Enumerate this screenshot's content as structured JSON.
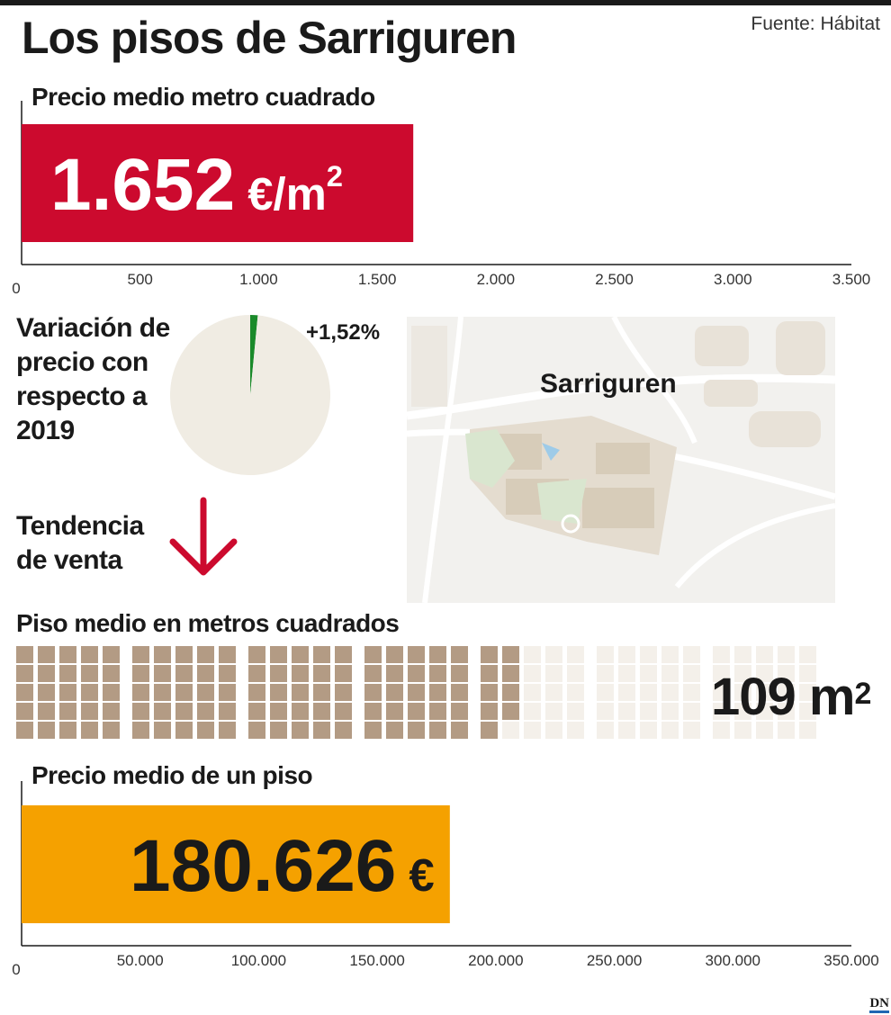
{
  "header": {
    "title": "Los pisos de Sarriguren",
    "source": "Fuente: Hábitat"
  },
  "sections": {
    "price_m2_title": "Precio medio metro cuadrado",
    "variation_title": "Variación de precio con respecto a 2019",
    "trend_title": "Tendencia de venta",
    "area_title": "Piso medio en metros cuadrados",
    "price_flat_title": "Precio medio de un piso"
  },
  "map": {
    "label": "Sarriguren"
  },
  "logo": "DN",
  "colors": {
    "red": "#cc0a2e",
    "orange": "#f5a100",
    "green": "#1a8a2a",
    "beige_pie": "#f0ece3",
    "square_filled": "#b39b84",
    "square_empty": "#f4f0ea"
  },
  "trend": {
    "direction": "down",
    "icon": "arrow-down-icon"
  },
  "area_value_text": "109 m",
  "area_value_sup": "2",
  "chart_data": [
    {
      "type": "bar",
      "orientation": "horizontal",
      "title": "Precio medio metro cuadrado",
      "values": [
        1652
      ],
      "value_label": "1.652 €/m",
      "value_label_sup": "2",
      "xlim": [
        0,
        3500
      ],
      "tick_values": [
        0,
        500,
        1000,
        1500,
        2000,
        2500,
        3000,
        3500
      ],
      "tick_labels": [
        "0",
        "500",
        "1.000",
        "1.500",
        "2.000",
        "2.500",
        "3.000",
        "3.500"
      ],
      "color": "#cc0a2e"
    },
    {
      "type": "pie",
      "title": "Variación de precio con respecto a 2019",
      "values": [
        1.52,
        98.48
      ],
      "value_label": "+1,52%",
      "colors": [
        "#1a8a2a",
        "#f0ece3"
      ]
    },
    {
      "type": "waffle",
      "title": "Piso medio en metros cuadrados",
      "value": 109,
      "total": 160,
      "unit": "m2"
    },
    {
      "type": "bar",
      "orientation": "horizontal",
      "title": "Precio medio de un piso",
      "values": [
        180626
      ],
      "value_label": "180.626 €",
      "xlim": [
        0,
        350000
      ],
      "tick_values": [
        0,
        50000,
        100000,
        150000,
        200000,
        250000,
        300000,
        350000
      ],
      "tick_labels": [
        "0",
        "50.000",
        "100.000",
        "150.000",
        "200.000",
        "250.000",
        "300.000",
        "350.000"
      ],
      "color": "#f5a100"
    }
  ]
}
